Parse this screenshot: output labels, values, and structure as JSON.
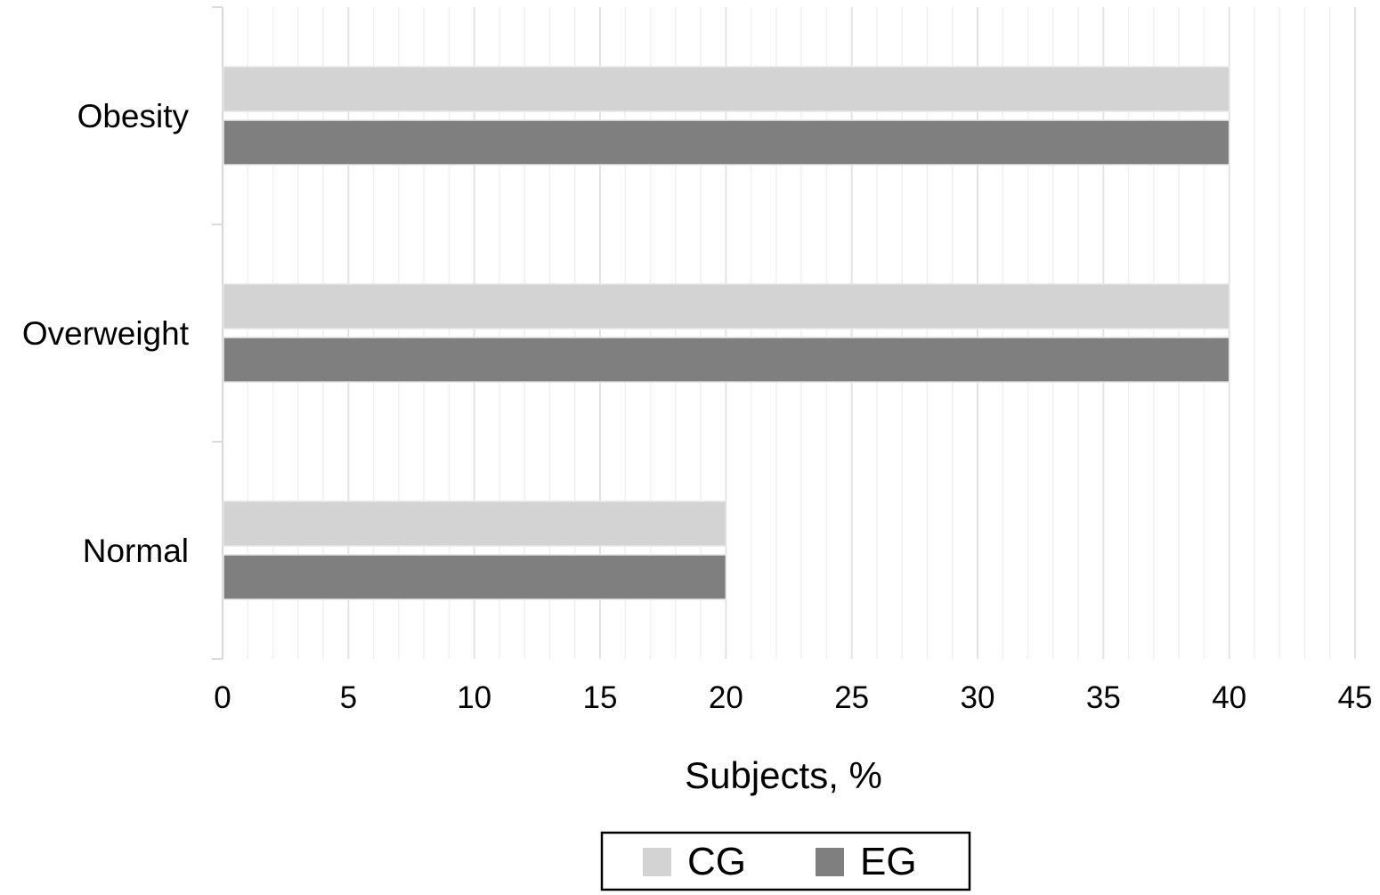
{
  "chart_data": {
    "type": "bar",
    "orientation": "horizontal",
    "categories": [
      "Obesity",
      "Overweight",
      "Normal"
    ],
    "series": [
      {
        "name": "CG",
        "values": [
          40,
          40,
          20
        ],
        "color": "#d3d3d3"
      },
      {
        "name": "EG",
        "values": [
          40,
          40,
          20
        ],
        "color": "#7f7f7f"
      }
    ],
    "xlabel": "Subjects, %",
    "ylabel": "",
    "title": "",
    "xlim": [
      0,
      45
    ],
    "xticks": [
      "0",
      "5",
      "10",
      "15",
      "20",
      "25",
      "30",
      "35",
      "40",
      "45"
    ],
    "grid": true,
    "legend": {
      "placement": "bottom-center",
      "entries": [
        "CG",
        "EG"
      ]
    }
  }
}
